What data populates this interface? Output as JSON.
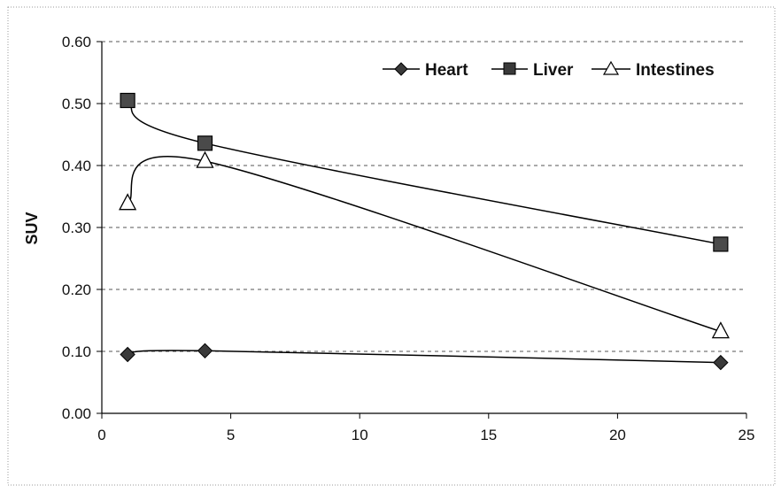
{
  "chart_data": {
    "type": "line",
    "xlabel": "",
    "ylabel": "SUV",
    "xlim": [
      0,
      25
    ],
    "ylim": [
      0,
      0.6
    ],
    "x_ticks": [
      "0",
      "5",
      "10",
      "15",
      "20",
      "25"
    ],
    "y_ticks": [
      "0.00",
      "0.10",
      "0.20",
      "0.30",
      "0.40",
      "0.50",
      "0.60"
    ],
    "grid": "horizontal dashed",
    "legend_position": "top-right",
    "series": [
      {
        "name": "Heart",
        "marker": "diamond",
        "x": [
          1,
          4,
          24
        ],
        "y": [
          0.095,
          0.101,
          0.082
        ]
      },
      {
        "name": "Liver",
        "marker": "square",
        "x": [
          1,
          4,
          24
        ],
        "y": [
          0.505,
          0.436,
          0.273
        ]
      },
      {
        "name": "Intestines",
        "marker": "triangle",
        "x": [
          1,
          4,
          24
        ],
        "y": [
          0.339,
          0.407,
          0.132
        ]
      }
    ]
  }
}
